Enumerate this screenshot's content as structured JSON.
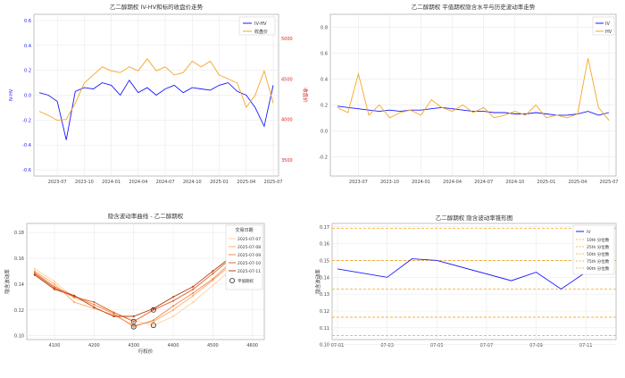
{
  "chart_data": [
    {
      "id": "iv-hv-price",
      "type": "line",
      "title": "乙二醇期权 IV-HV和标的收盘价走势",
      "ylabel": "IV-HV",
      "y2label": "收盘价",
      "xticks": [
        "2023-07",
        "2023-10",
        "2024-01",
        "2024-04",
        "2024-07",
        "2024-10",
        "2025-01",
        "2025-04",
        "2025-07"
      ],
      "yticks": [
        "0.6",
        "0.4",
        "0.2",
        "0.0",
        "-0.2",
        "-0.4",
        "-0.6"
      ],
      "y2ticks": [
        "5000",
        "4500",
        "4000",
        "3500"
      ],
      "ylim": [
        -0.65,
        0.65
      ],
      "y2lim": [
        3300,
        5300
      ],
      "grid": true,
      "legend_position": "top-right",
      "x_months": [
        "2023-05",
        "2023-06",
        "2023-07",
        "2023-08",
        "2023-09",
        "2023-10",
        "2023-11",
        "2023-12",
        "2024-01",
        "2024-02",
        "2024-03",
        "2024-04",
        "2024-05",
        "2024-06",
        "2024-07",
        "2024-08",
        "2024-09",
        "2024-10",
        "2024-11",
        "2024-12",
        "2025-01",
        "2025-02",
        "2025-03",
        "2025-04",
        "2025-05",
        "2025-06",
        "2025-07"
      ],
      "series": [
        {
          "name": "IV-HV",
          "color": "#1a1aff",
          "axis": "left",
          "values": [
            0.02,
            0.0,
            -0.05,
            -0.36,
            0.03,
            0.06,
            0.05,
            0.1,
            0.08,
            0.0,
            0.12,
            0.02,
            0.06,
            0.0,
            0.05,
            0.08,
            0.02,
            0.06,
            0.05,
            0.04,
            0.08,
            0.1,
            0.03,
            0.0,
            -0.1,
            -0.25,
            0.08
          ]
        },
        {
          "name": "收盘价",
          "color": "#f5a623",
          "axis": "right",
          "values": [
            4100,
            4050,
            3990,
            4000,
            4200,
            4450,
            4550,
            4650,
            4600,
            4580,
            4650,
            4600,
            4750,
            4600,
            4650,
            4550,
            4580,
            4720,
            4650,
            4720,
            4550,
            4500,
            4450,
            4150,
            4300,
            4600,
            4200
          ]
        }
      ]
    },
    {
      "id": "iv-hv-level",
      "type": "line",
      "title": "乙二醇期权 平值期权隐含水平与历史波动率走势",
      "xticks": [
        "2023-07",
        "2023-10",
        "2024-01",
        "2024-04",
        "2024-07",
        "2024-10",
        "2025-01",
        "2025-04",
        "2025-07"
      ],
      "yticks": [
        "0.8",
        "0.6",
        "0.4",
        "0.2",
        "0.0",
        "-0.2"
      ],
      "ylim": [
        -0.35,
        0.9
      ],
      "grid": true,
      "legend_position": "top-right",
      "x_months": [
        "2023-05",
        "2023-06",
        "2023-07",
        "2023-08",
        "2023-09",
        "2023-10",
        "2023-11",
        "2023-12",
        "2024-01",
        "2024-02",
        "2024-03",
        "2024-04",
        "2024-05",
        "2024-06",
        "2024-07",
        "2024-08",
        "2024-09",
        "2024-10",
        "2024-11",
        "2024-12",
        "2025-01",
        "2025-02",
        "2025-03",
        "2025-04",
        "2025-05",
        "2025-06",
        "2025-07"
      ],
      "series": [
        {
          "name": "IV",
          "color": "#1a1aff",
          "values": [
            0.19,
            0.18,
            0.17,
            0.16,
            0.15,
            0.16,
            0.15,
            0.16,
            0.16,
            0.17,
            0.18,
            0.17,
            0.16,
            0.15,
            0.15,
            0.14,
            0.14,
            0.13,
            0.13,
            0.14,
            0.13,
            0.12,
            0.12,
            0.13,
            0.15,
            0.12,
            0.14
          ]
        },
        {
          "name": "HV",
          "color": "#f5a623",
          "values": [
            0.18,
            0.14,
            0.44,
            0.12,
            0.2,
            0.1,
            0.14,
            0.16,
            0.12,
            0.24,
            0.18,
            0.15,
            0.2,
            0.14,
            0.18,
            0.1,
            0.12,
            0.15,
            0.12,
            0.2,
            0.1,
            0.12,
            0.1,
            0.13,
            0.56,
            0.18,
            0.08
          ]
        }
      ]
    },
    {
      "id": "smile",
      "type": "line",
      "title": "隐含波动率曲线 - 乙二醇期权",
      "xlabel": "行权价",
      "ylabel": "隐含波动率",
      "xticks": [
        "4100",
        "4200",
        "4300",
        "4400",
        "4500",
        "4600"
      ],
      "yticks": [
        "0.18",
        "0.16",
        "0.14",
        "0.12",
        "0.10"
      ],
      "xlim": [
        4030,
        4630
      ],
      "ylim": [
        0.097,
        0.187
      ],
      "grid": true,
      "legend_title": "交易日期",
      "legend_position": "top-right",
      "atm_label": "平值期权",
      "x": [
        4050,
        4100,
        4150,
        4200,
        4250,
        4300,
        4350,
        4400,
        4450,
        4500,
        4550,
        4600
      ],
      "series": [
        {
          "name": "2025-07-07",
          "color": "#fdd0a2",
          "values": [
            0.152,
            0.142,
            0.129,
            0.124,
            0.118,
            0.112,
            0.108,
            0.115,
            0.126,
            0.139,
            0.152,
            0.163
          ]
        },
        {
          "name": "2025-07-08",
          "color": "#fdae6b",
          "values": [
            0.15,
            0.14,
            0.126,
            0.121,
            0.116,
            0.108,
            0.111,
            0.12,
            0.131,
            0.143,
            0.156,
            0.166
          ]
        },
        {
          "name": "2025-07-09",
          "color": "#f5884e",
          "values": [
            0.149,
            0.138,
            0.131,
            0.124,
            0.117,
            0.107,
            0.112,
            0.123,
            0.133,
            0.144,
            0.158,
            0.165
          ]
        },
        {
          "name": "2025-07-10",
          "color": "#e0622d",
          "values": [
            0.148,
            0.137,
            0.13,
            0.126,
            0.118,
            0.111,
            0.12,
            0.127,
            0.136,
            0.148,
            0.161,
            0.168
          ]
        },
        {
          "name": "2025-07-11",
          "color": "#b44116",
          "values": [
            0.147,
            0.136,
            0.131,
            0.122,
            0.115,
            0.115,
            0.121,
            0.13,
            0.138,
            0.15,
            0.162,
            0.168
          ]
        }
      ],
      "atm_points": [
        {
          "x": 4300,
          "y": 0.107
        },
        {
          "x": 4300,
          "y": 0.111
        },
        {
          "x": 4350,
          "y": 0.108
        },
        {
          "x": 4350,
          "y": 0.12
        }
      ]
    },
    {
      "id": "iv-percentile",
      "type": "line",
      "title": "乙二醇期权 隐含波动率锥形图",
      "ylabel": "隐含波动率",
      "xticks": [
        "07-01",
        "07-03",
        "07-05",
        "07-07",
        "07-09",
        "07-11"
      ],
      "yticks": [
        "0.17",
        "0.16",
        "0.15",
        "0.14",
        "0.13",
        "0.12",
        "0.11",
        "0.10"
      ],
      "ylim": [
        0.103,
        0.172
      ],
      "xlim": [
        0,
        11
      ],
      "grid": true,
      "legend_position": "top-right",
      "x": [
        0,
        2,
        3,
        4,
        7,
        8,
        9,
        10,
        11
      ],
      "series": [
        {
          "name": "IV",
          "color": "#1a1aff",
          "values": [
            0.145,
            0.14,
            0.151,
            0.15,
            0.138,
            0.143,
            0.133,
            0.143,
            0.145
          ]
        }
      ],
      "percentiles": [
        {
          "name": "10th 分位数",
          "value": 0.1054,
          "color": "#f5a623"
        },
        {
          "name": "25th 分位数",
          "value": 0.1163,
          "color": "#f5a623"
        },
        {
          "name": "50th 分位数",
          "value": 0.133,
          "color": "#f5a623"
        },
        {
          "name": "75th 分位数",
          "value": 0.15,
          "color": "#f5a623"
        },
        {
          "name": "90th 分位数",
          "value": 0.169,
          "color": "#f5a623"
        }
      ]
    }
  ]
}
